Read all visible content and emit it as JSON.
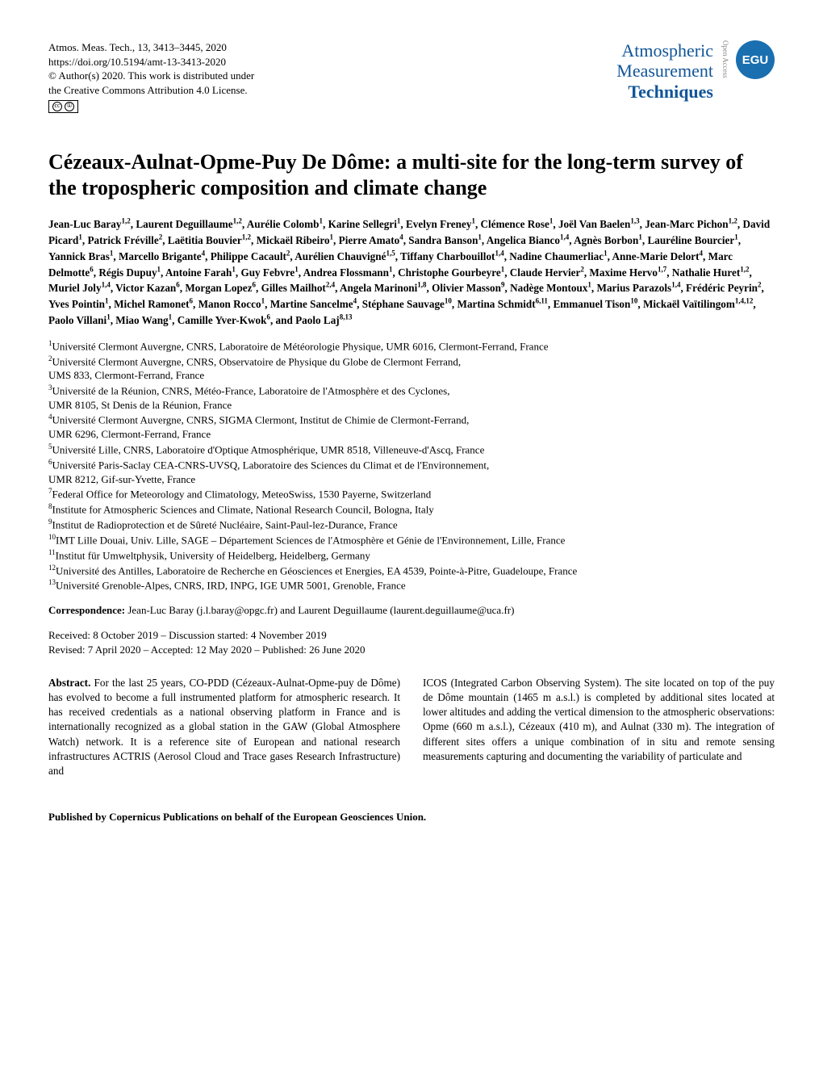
{
  "header": {
    "journal_ref": "Atmos. Meas. Tech., 13, 3413–3445, 2020",
    "doi": "https://doi.org/10.5194/amt-13-3413-2020",
    "copyright": "© Author(s) 2020. This work is distributed under",
    "license": "the Creative Commons Attribution 4.0 License.",
    "cc_label": "cc",
    "by_label": "BY",
    "journal_name_1": "Atmospheric",
    "journal_name_2": "Measurement",
    "journal_name_3": "Techniques",
    "open_access": "Open Access",
    "badge_text": "EGU"
  },
  "title": "Cézeaux-Aulnat-Opme-Puy De Dôme: a multi-site for the long-term survey of the tropospheric composition and climate change",
  "authors_html": "Jean-Luc Baray<sup>1,2</sup>, Laurent Deguillaume<sup>1,2</sup>, Aurélie Colomb<sup>1</sup>, Karine Sellegri<sup>1</sup>, Evelyn Freney<sup>1</sup>, Clémence Rose<sup>1</sup>, Joël Van Baelen<sup>1,3</sup>, Jean-Marc Pichon<sup>1,2</sup>, David Picard<sup>1</sup>, Patrick Fréville<sup>2</sup>, Laëtitia Bouvier<sup>1,2</sup>, Mickaël Ribeiro<sup>1</sup>, Pierre Amato<sup>4</sup>, Sandra Banson<sup>1</sup>, Angelica Bianco<sup>1,4</sup>, Agnès Borbon<sup>1</sup>, Lauréline Bourcier<sup>1</sup>, Yannick Bras<sup>1</sup>, Marcello Brigante<sup>4</sup>, Philippe Cacault<sup>2</sup>, Aurélien Chauvigné<sup>1,5</sup>, Tiffany Charbouillot<sup>1,4</sup>, Nadine Chaumerliac<sup>1</sup>, Anne-Marie Delort<sup>4</sup>, Marc Delmotte<sup>6</sup>, Régis Dupuy<sup>1</sup>, Antoine Farah<sup>1</sup>, Guy Febvre<sup>1</sup>, Andrea Flossmann<sup>1</sup>, Christophe Gourbeyre<sup>1</sup>, Claude Hervier<sup>2</sup>, Maxime Hervo<sup>1,7</sup>, Nathalie Huret<sup>1,2</sup>, Muriel Joly<sup>1,4</sup>, Victor Kazan<sup>6</sup>, Morgan Lopez<sup>6</sup>, Gilles Mailhot<sup>2,4</sup>, Angela Marinoni<sup>1,8</sup>, Olivier Masson<sup>9</sup>, Nadège Montoux<sup>1</sup>, Marius Parazols<sup>1,4</sup>, Frédéric Peyrin<sup>2</sup>, Yves Pointin<sup>1</sup>, Michel Ramonet<sup>6</sup>, Manon Rocco<sup>1</sup>, Martine Sancelme<sup>4</sup>, Stéphane Sauvage<sup>10</sup>, Martina Schmidt<sup>6,11</sup>, Emmanuel Tison<sup>10</sup>, Mickaël Vaïtilingom<sup>1,4,12</sup>, Paolo Villani<sup>1</sup>, Miao Wang<sup>1</sup>, Camille Yver-Kwok<sup>6</sup>, and Paolo Laj<sup>8,13</sup>",
  "affiliations": [
    "<sup>1</sup>Université Clermont Auvergne, CNRS, Laboratoire de Météorologie Physique, UMR 6016, Clermont-Ferrand, France",
    "<sup>2</sup>Université Clermont Auvergne, CNRS, Observatoire de Physique du Globe de Clermont Ferrand,",
    "UMS 833, Clermont-Ferrand, France",
    "<sup>3</sup>Université de la Réunion, CNRS, Météo-France, Laboratoire de l'Atmosphère et des Cyclones,",
    "UMR 8105, St Denis de la Réunion, France",
    "<sup>4</sup>Université Clermont Auvergne, CNRS, SIGMA Clermont, Institut de Chimie de Clermont-Ferrand,",
    "UMR 6296, Clermont-Ferrand, France",
    "<sup>5</sup>Université Lille, CNRS, Laboratoire d'Optique Atmosphérique, UMR 8518, Villeneuve-d'Ascq, France",
    "<sup>6</sup>Université Paris-Saclay CEA-CNRS-UVSQ, Laboratoire des Sciences du Climat et de l'Environnement,",
    "UMR 8212, Gif-sur-Yvette, France",
    "<sup>7</sup>Federal Office for Meteorology and Climatology, MeteoSwiss, 1530 Payerne, Switzerland",
    "<sup>8</sup>Institute for Atmospheric Sciences and Climate, National Research Council, Bologna, Italy",
    "<sup>9</sup>Institut de Radioprotection et de Sûreté Nucléaire, Saint-Paul-lez-Durance, France",
    "<sup>10</sup>IMT Lille Douai, Univ. Lille, SAGE – Département Sciences de l'Atmosphère et Génie de l'Environnement, Lille, France",
    "<sup>11</sup>Institut für Umweltphysik, University of Heidelberg, Heidelberg, Germany",
    "<sup>12</sup>Université des Antilles, Laboratoire de Recherche en Géosciences et Energies, EA 4539, Pointe-à-Pitre, Guadeloupe, France",
    "<sup>13</sup>Université Grenoble-Alpes, CNRS, IRD, INPG, IGE UMR 5001, Grenoble, France"
  ],
  "correspondence_label": "Correspondence:",
  "correspondence_text": " Jean-Luc Baray (j.l.baray@opgc.fr) and Laurent Deguillaume (laurent.deguillaume@uca.fr)",
  "dates_line1": "Received: 8 October 2019 – Discussion started: 4 November 2019",
  "dates_line2": "Revised: 7 April 2020 – Accepted: 12 May 2020 – Published: 26 June 2020",
  "abstract": {
    "label": "Abstract.",
    "col1": " For the last 25 years, CO-PDD (Cézeaux-Aulnat-Opme-puy de Dôme) has evolved to become a full instrumented platform for atmospheric research. It has received credentials as a national observing platform in France and is internationally recognized as a global station in the GAW (Global Atmosphere Watch) network. It is a reference site of European and national research infrastructures ACTRIS (Aerosol Cloud and Trace gases Research Infrastructure) and",
    "col2": "ICOS (Integrated Carbon Observing System). The site located on top of the puy de Dôme mountain (1465 m a.s.l.) is completed by additional sites located at lower altitudes and adding the vertical dimension to the atmospheric observations: Opme (660 m a.s.l.), Cézeaux (410 m), and Aulnat (330 m). The integration of different sites offers a unique combination of in situ and remote sensing measurements capturing and documenting the variability of particulate and"
  },
  "footer": "Published by Copernicus Publications on behalf of the European Geosciences Union.",
  "colors": {
    "journal_blue": "#115599",
    "badge_bg": "#1a6fb0",
    "text": "#000000",
    "background": "#ffffff"
  }
}
